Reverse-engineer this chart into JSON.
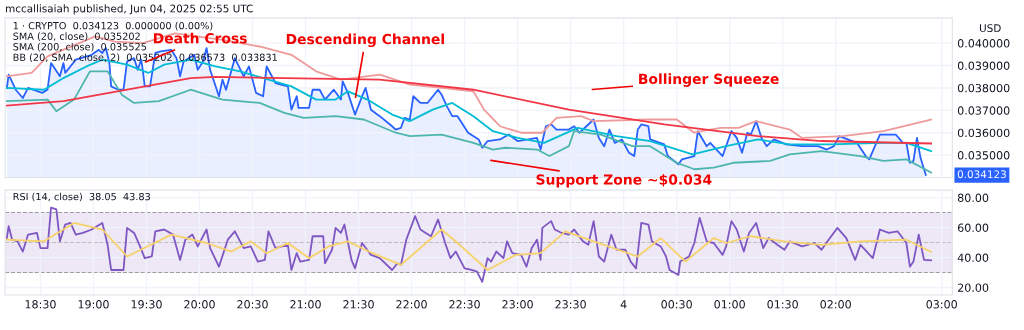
{
  "chart_data": [
    {
      "type": "line",
      "title": "mccallisaiah published, Jun 04, 2025 02:55 UTC",
      "ylabel": "USD",
      "annotations": [
        "1 · CRYPTO  0.034123  0.000000 (0.00%)",
        "SMA (20, close)  0.035202",
        "SMA (200, close)  0.035525",
        "BB (20, SMA, close, 2)  0.035202  0.036573  0.033831",
        "Bollinger Squeeze",
        "Support Zone ~$0.034",
        "0.034123",
        {
          "text": "Death Cross",
          "x": "2025-06-03T19:28",
          "y": 0.03911
        },
        {
          "text": "Descending Channel",
          "x": "2025-06-03T21:28",
          "y": 0.03746
        }
      ],
      "series": [
        {
          "type": "area",
          "color": "#2962ff",
          "x": [
            "2025-06-03T18:11",
            "2025-06-03T18:12",
            "2025-06-03T18:16",
            "2025-06-03T18:20",
            "2025-06-03T18:23",
            "2025-06-03T18:31",
            "2025-06-03T18:34",
            "2025-06-03T18:36",
            "2025-06-03T18:41",
            "2025-06-03T18:43",
            "2025-06-03T18:44",
            "2025-06-03T18:50",
            "2025-06-03T18:59",
            "2025-06-03T19:03",
            "2025-06-03T19:05",
            "2025-06-03T19:07",
            "2025-06-03T19:09",
            "2025-06-03T19:10",
            "2025-06-03T19:14",
            "2025-06-03T19:17",
            "2025-06-03T19:19",
            "2025-06-03T19:23",
            "2025-06-03T19:25",
            "2025-06-03T19:27",
            "2025-06-03T19:28",
            "2025-06-03T19:29",
            "2025-06-03T19:32",
            "2025-06-03T19:35",
            "2025-06-03T19:38",
            "2025-06-03T19:44",
            "2025-06-03T19:47",
            "2025-06-03T19:49",
            "2025-06-03T19:51",
            "2025-06-03T19:57",
            "2025-06-03T19:59",
            "2025-06-03T20:02",
            "2025-06-03T20:04",
            "2025-06-03T20:06",
            "2025-06-03T20:11",
            "2025-06-03T20:13",
            "2025-06-03T20:15",
            "2025-06-03T20:20",
            "2025-06-03T20:25",
            "2025-06-03T20:28",
            "2025-06-03T20:32",
            "2025-06-03T20:36",
            "2025-06-03T20:38",
            "2025-06-03T20:43",
            "2025-06-03T20:50",
            "2025-06-03T20:52",
            "2025-06-03T20:55",
            "2025-06-03T20:56",
            "2025-06-03T21:02",
            "2025-06-03T21:04",
            "2025-06-03T21:08",
            "2025-06-03T21:11",
            "2025-06-03T21:16",
            "2025-06-03T21:20",
            "2025-06-03T21:21",
            "2025-06-03T21:24",
            "2025-06-03T21:28",
            "2025-06-03T21:32",
            "2025-06-03T21:34",
            "2025-06-03T21:37",
            "2025-06-03T21:42",
            "2025-06-03T21:49",
            "2025-06-03T21:51",
            "2025-06-03T21:54",
            "2025-06-03T21:56",
            "2025-06-03T21:59",
            "2025-06-03T22:01",
            "2025-06-03T22:05",
            "2025-06-03T22:09",
            "2025-06-03T22:15",
            "2025-06-03T22:17",
            "2025-06-03T22:20",
            "2025-06-03T22:23",
            "2025-06-03T22:26",
            "2025-06-03T22:32",
            "2025-06-03T22:38",
            "2025-06-03T22:40",
            "2025-06-03T22:43",
            "2025-06-03T22:50",
            "2025-06-03T22:55",
            "2025-06-03T23:00",
            "2025-06-03T23:06",
            "2025-06-03T23:11",
            "2025-06-03T23:13",
            "2025-06-03T23:16",
            "2025-06-03T23:19",
            "2025-06-03T23:22",
            "2025-06-03T23:29",
            "2025-06-03T23:32",
            "2025-06-03T23:35",
            "2025-06-03T23:43",
            "2025-06-03T23:46",
            "2025-06-03T23:49",
            "2025-06-03T23:52",
            "2025-06-03T23:55",
            "2025-06-03T23:59",
            "2025-06-04T00:03",
            "2025-06-04T00:06",
            "2025-06-04T00:08",
            "2025-06-04T00:10",
            "2025-06-04T00:14",
            "2025-06-04T00:15",
            "2025-06-04T00:23",
            "2025-06-04T00:25",
            "2025-06-04T00:31",
            "2025-06-04T00:33",
            "2025-06-04T00:40",
            "2025-06-04T00:42",
            "2025-06-04T00:47",
            "2025-06-04T00:49",
            "2025-06-04T00:56",
            "2025-06-04T01:01",
            "2025-06-04T01:04",
            "2025-06-04T01:07",
            "2025-06-04T01:10",
            "2025-06-04T01:12",
            "2025-06-04T01:15",
            "2025-06-04T01:18",
            "2025-06-04T01:21",
            "2025-06-04T01:25",
            "2025-06-04T01:32",
            "2025-06-04T01:41",
            "2025-06-04T01:50",
            "2025-06-04T01:55",
            "2025-06-04T01:59",
            "2025-06-04T02:02",
            "2025-06-04T02:12",
            "2025-06-04T02:17",
            "2025-06-04T02:19",
            "2025-06-04T02:25",
            "2025-06-04T02:34",
            "2025-06-04T02:38",
            "2025-06-04T02:40",
            "2025-06-04T02:42",
            "2025-06-04T02:44",
            "2025-06-04T02:46",
            "2025-06-04T02:48",
            "2025-06-04T02:51"
          ],
          "values": [
            0.038,
            0.03859,
            0.03792,
            0.03755,
            0.038,
            0.03778,
            0.03792,
            0.03911,
            0.03852,
            0.03911,
            0.03867,
            0.03926,
            0.03948,
            0.0397,
            0.03956,
            0.03978,
            0.03911,
            0.03807,
            0.03792,
            0.03792,
            0.03918,
            0.03933,
            0.03881,
            0.03926,
            0.03874,
            0.03807,
            0.03807,
            0.03956,
            0.03963,
            0.0397,
            0.03933,
            0.03852,
            0.03918,
            0.03948,
            0.03881,
            0.03918,
            0.03978,
            0.03881,
            0.03763,
            0.03837,
            0.03792,
            0.03933,
            0.03852,
            0.03896,
            0.03778,
            0.03763,
            0.03896,
            0.03822,
            0.03807,
            0.03703,
            0.03763,
            0.03711,
            0.03711,
            0.03792,
            0.03792,
            0.03748,
            0.03792,
            0.03748,
            0.03829,
            0.03778,
            0.03681,
            0.03763,
            0.038,
            0.03703,
            0.03674,
            0.03629,
            0.03614,
            0.03622,
            0.03666,
            0.03659,
            0.03763,
            0.03733,
            0.03733,
            0.03792,
            0.0377,
            0.03718,
            0.03674,
            0.03674,
            0.036,
            0.0357,
            0.03533,
            0.03563,
            0.0357,
            0.03592,
            0.03563,
            0.0357,
            0.03577,
            0.03525,
            0.03629,
            0.03637,
            0.03614,
            0.03614,
            0.03629,
            0.036,
            0.03659,
            0.03577,
            0.0354,
            0.03614,
            0.03555,
            0.0357,
            0.03511,
            0.03496,
            0.03614,
            0.03637,
            0.03629,
            0.0357,
            0.03548,
            0.03496,
            0.03459,
            0.03481,
            0.03496,
            0.03607,
            0.0354,
            0.03555,
            0.03496,
            0.03607,
            0.03577,
            0.03511,
            0.036,
            0.03592,
            0.03652,
            0.03577,
            0.0354,
            0.0357,
            0.03548,
            0.0354,
            0.0354,
            0.03525,
            0.0354,
            0.03585,
            0.03555,
            0.03496,
            0.03481,
            0.03592,
            0.03592,
            0.03555,
            0.03555,
            0.03466,
            0.03474,
            0.03577,
            0.03488,
            0.03412
          ]
        },
        {
          "color": "#ef9a9a",
          "x": [
            "2025-06-03T18:11",
            "2025-06-03T18:25",
            "2025-06-03T18:34",
            "2025-06-03T19:01",
            "2025-06-03T19:12",
            "2025-06-03T19:28",
            "2025-06-03T19:46",
            "2025-06-03T20:13",
            "2025-06-03T20:34",
            "2025-06-03T20:52",
            "2025-06-03T21:06",
            "2025-06-03T21:20",
            "2025-06-03T21:42",
            "2025-06-03T21:59",
            "2025-06-03T22:17",
            "2025-06-03T22:35",
            "2025-06-03T22:41",
            "2025-06-03T22:50",
            "2025-06-03T23:02",
            "2025-06-03T23:14",
            "2025-06-03T23:22",
            "2025-06-03T23:36",
            "2025-06-03T23:43",
            "2025-06-04T00:14",
            "2025-06-04T00:30",
            "2025-06-04T00:40",
            "2025-06-04T00:44",
            "2025-06-04T00:55",
            "2025-06-04T01:05",
            "2025-06-04T01:15",
            "2025-06-04T01:34",
            "2025-06-04T01:41",
            "2025-06-04T02:04",
            "2025-06-04T02:27",
            "2025-06-04T02:54"
          ],
          "values": [
            0.03852,
            0.03867,
            0.03941,
            0.0403,
            0.04007,
            0.04,
            0.04044,
            0.04015,
            0.03985,
            0.03948,
            0.03874,
            0.03837,
            0.03859,
            0.03815,
            0.038,
            0.03785,
            0.03703,
            0.03629,
            0.036,
            0.036,
            0.03666,
            0.03674,
            0.03652,
            0.03659,
            0.03659,
            0.036,
            0.03607,
            0.03622,
            0.03622,
            0.03652,
            0.03614,
            0.03577,
            0.03585,
            0.03607,
            0.03659
          ]
        },
        {
          "color": "#4db6ac",
          "x": [
            "2025-06-03T18:11",
            "2025-06-03T18:34",
            "2025-06-03T18:39",
            "2025-06-03T18:49",
            "2025-06-03T18:58",
            "2025-06-03T19:08",
            "2025-06-03T19:16",
            "2025-06-03T19:23",
            "2025-06-03T19:37",
            "2025-06-03T19:55",
            "2025-06-03T20:13",
            "2025-06-03T20:34",
            "2025-06-03T20:48",
            "2025-06-03T20:59",
            "2025-06-03T21:17",
            "2025-06-03T21:33",
            "2025-06-03T21:51",
            "2025-06-03T21:59",
            "2025-06-03T22:17",
            "2025-06-03T22:35",
            "2025-06-03T22:46",
            "2025-06-03T22:53",
            "2025-06-03T23:11",
            "2025-06-03T23:18",
            "2025-06-03T23:29",
            "2025-06-03T23:32",
            "2025-06-03T23:47",
            "2025-06-04T00:05",
            "2025-06-04T00:15",
            "2025-06-04T00:30",
            "2025-06-04T00:40",
            "2025-06-04T00:51",
            "2025-06-04T01:02",
            "2025-06-04T01:23",
            "2025-06-04T01:34",
            "2025-06-04T01:52",
            "2025-06-04T02:14",
            "2025-06-04T02:27",
            "2025-06-04T02:40",
            "2025-06-04T02:54"
          ],
          "values": [
            0.03741,
            0.03748,
            0.03696,
            0.03748,
            0.03874,
            0.03874,
            0.0377,
            0.03733,
            0.03741,
            0.03792,
            0.03748,
            0.03733,
            0.03689,
            0.03666,
            0.03674,
            0.03659,
            0.036,
            0.03585,
            0.03592,
            0.03555,
            0.03525,
            0.03533,
            0.03525,
            0.03496,
            0.0354,
            0.03607,
            0.03592,
            0.0354,
            0.0354,
            0.03466,
            0.03437,
            0.03444,
            0.03466,
            0.03474,
            0.03503,
            0.03518,
            0.03496,
            0.03474,
            0.03481,
            0.03422
          ]
        },
        {
          "color": "#00bcd4",
          "x": [
            "2025-06-03T18:11",
            "2025-06-03T18:32",
            "2025-06-03T18:43",
            "2025-06-03T18:56",
            "2025-06-03T19:05",
            "2025-06-03T19:19",
            "2025-06-03T19:31",
            "2025-06-03T19:40",
            "2025-06-03T19:55",
            "2025-06-03T20:09",
            "2025-06-03T20:23",
            "2025-06-03T20:39",
            "2025-06-03T20:52",
            "2025-06-03T21:06",
            "2025-06-03T21:17",
            "2025-06-03T21:24",
            "2025-06-03T21:35",
            "2025-06-03T21:49",
            "2025-06-03T21:59",
            "2025-06-03T22:12",
            "2025-06-03T22:23",
            "2025-06-03T22:35",
            "2025-06-03T22:46",
            "2025-06-03T23:00",
            "2025-06-03T23:15",
            "2025-06-03T23:34",
            "2025-06-03T23:56",
            "2025-06-04T00:15",
            "2025-06-04T00:39",
            "2025-06-04T00:58",
            "2025-06-04T01:16",
            "2025-06-04T01:34",
            "2025-06-04T01:57",
            "2025-06-04T02:27",
            "2025-06-04T02:40",
            "2025-06-04T02:54"
          ],
          "values": [
            0.038,
            0.03792,
            0.03844,
            0.03896,
            0.03926,
            0.03904,
            0.03867,
            0.03904,
            0.03926,
            0.03896,
            0.03874,
            0.03837,
            0.03807,
            0.03748,
            0.03748,
            0.03785,
            0.03748,
            0.03681,
            0.03652,
            0.03703,
            0.03733,
            0.03674,
            0.03607,
            0.03577,
            0.03555,
            0.03622,
            0.03585,
            0.03563,
            0.03503,
            0.0354,
            0.0357,
            0.03548,
            0.03548,
            0.03555,
            0.03555,
            0.03518
          ]
        },
        {
          "color": "#f23645",
          "x": [
            "2025-06-03T18:11",
            "2025-06-03T18:43",
            "2025-06-03T19:19",
            "2025-06-03T19:55",
            "2025-06-03T20:09",
            "2025-06-03T20:48",
            "2025-06-03T21:42",
            "2025-06-03T22:35",
            "2025-06-03T23:29",
            "2025-06-04T00:23",
            "2025-06-04T01:16",
            "2025-06-04T01:52",
            "2025-06-04T02:54"
          ],
          "values": [
            0.03721,
            0.03741,
            0.03792,
            0.03844,
            0.03849,
            0.03844,
            0.03837,
            0.03792,
            0.03703,
            0.03637,
            0.03585,
            0.03563,
            0.03552
          ]
        }
      ],
      "xlim": [
        "2025-06-03T18:10",
        "2025-06-04T03:06"
      ],
      "ylim": [
        0.034,
        0.04113
      ],
      "yticks": [
        {
          "value": 0.035,
          "label": "0.035000"
        },
        {
          "value": 0.036,
          "label": "0.036000"
        },
        {
          "value": 0.037,
          "label": "0.037000"
        },
        {
          "value": 0.038,
          "label": "0.038000"
        },
        {
          "value": 0.039,
          "label": "0.039000"
        },
        {
          "value": 0.04,
          "label": "0.040000"
        }
      ],
      "xticks": [
        {
          "value": "2025-06-03T18:30",
          "label": null
        },
        {
          "value": "2025-06-03T19:00",
          "label": null
        },
        {
          "value": "2025-06-03T19:30",
          "label": null
        },
        {
          "value": "2025-06-03T20:00",
          "label": null
        },
        {
          "value": "2025-06-03T20:30",
          "label": null
        },
        {
          "value": "2025-06-03T21:00",
          "label": null
        },
        {
          "value": "2025-06-03T21:30",
          "label": null
        },
        {
          "value": "2025-06-03T22:00",
          "label": null
        },
        {
          "value": "2025-06-03T22:30",
          "label": null
        },
        {
          "value": "2025-06-03T23:00",
          "label": null
        },
        {
          "value": "2025-06-03T23:30",
          "label": null
        },
        {
          "value": "2025-06-04T00:00",
          "label": null
        },
        {
          "value": "2025-06-04T00:30",
          "label": null
        },
        {
          "value": "2025-06-04T01:00",
          "label": null
        },
        {
          "value": "2025-06-04T01:30",
          "label": null
        },
        {
          "value": "2025-06-04T02:00",
          "label": null
        },
        {
          "value": "2025-06-04T03:00",
          "label": null
        }
      ],
      "tick_labels": "y",
      "grid": true
    },
    {
      "type": "line",
      "annotations": [
        "RSI (14, close)  38.05  43.83"
      ],
      "series": [
        {
          "color": "#7e57c2",
          "x": [
            "2025-06-03T18:11",
            "2025-06-03T18:12",
            "2025-06-03T18:14",
            "2025-06-03T18:17",
            "2025-06-03T18:20",
            "2025-06-03T18:23",
            "2025-06-03T18:28",
            "2025-06-03T18:30",
            "2025-06-03T18:34",
            "2025-06-03T18:36",
            "2025-06-03T18:39",
            "2025-06-03T18:41",
            "2025-06-03T18:44",
            "2025-06-03T18:47",
            "2025-06-03T18:50",
            "2025-06-03T18:54",
            "2025-06-03T18:59",
            "2025-06-03T19:05",
            "2025-06-03T19:08",
            "2025-06-03T19:10",
            "2025-06-03T19:14",
            "2025-06-03T19:17",
            "2025-06-03T19:19",
            "2025-06-03T19:23",
            "2025-06-03T19:26",
            "2025-06-03T19:29",
            "2025-06-03T19:33",
            "2025-06-03T19:35",
            "2025-06-03T19:40",
            "2025-06-03T19:45",
            "2025-06-03T19:49",
            "2025-06-03T19:52",
            "2025-06-03T19:56",
            "2025-06-03T19:59",
            "2025-06-03T20:04",
            "2025-06-03T20:06",
            "2025-06-03T20:11",
            "2025-06-03T20:16",
            "2025-06-03T20:20",
            "2025-06-03T20:25",
            "2025-06-03T20:29",
            "2025-06-03T20:33",
            "2025-06-03T20:37",
            "2025-06-03T20:39",
            "2025-06-03T20:43",
            "2025-06-03T20:50",
            "2025-06-03T20:52",
            "2025-06-03T20:55",
            "2025-06-03T20:57",
            "2025-06-03T21:02",
            "2025-06-03T21:04",
            "2025-06-03T21:10",
            "2025-06-03T21:11",
            "2025-06-03T21:15",
            "2025-06-03T21:17",
            "2025-06-03T21:20",
            "2025-06-03T21:22",
            "2025-06-03T21:26",
            "2025-06-03T21:28",
            "2025-06-03T21:32",
            "2025-06-03T21:37",
            "2025-06-03T21:42",
            "2025-06-03T21:49",
            "2025-06-03T21:52",
            "2025-06-03T21:54",
            "2025-06-03T21:57",
            "2025-06-03T22:02",
            "2025-06-03T22:05",
            "2025-06-03T22:08",
            "2025-06-03T22:11",
            "2025-06-03T22:15",
            "2025-06-03T22:19",
            "2025-06-03T22:22",
            "2025-06-03T22:25",
            "2025-06-03T22:30",
            "2025-06-03T22:34",
            "2025-06-03T22:37",
            "2025-06-03T22:40",
            "2025-06-03T22:43",
            "2025-06-03T22:45",
            "2025-06-03T22:48",
            "2025-06-03T22:52",
            "2025-06-03T22:54",
            "2025-06-03T22:57",
            "2025-06-03T23:02",
            "2025-06-03T23:05",
            "2025-06-03T23:08",
            "2025-06-03T23:11",
            "2025-06-03T23:13",
            "2025-06-03T23:14",
            "2025-06-03T23:19",
            "2025-06-03T23:21",
            "2025-06-03T23:25",
            "2025-06-03T23:29",
            "2025-06-03T23:32",
            "2025-06-03T23:37",
            "2025-06-03T23:40",
            "2025-06-03T23:43",
            "2025-06-03T23:46",
            "2025-06-03T23:49",
            "2025-06-03T23:53",
            "2025-06-03T23:56",
            "2025-06-04T00:01",
            "2025-06-04T00:04",
            "2025-06-04T00:07",
            "2025-06-04T00:10",
            "2025-06-04T00:14",
            "2025-06-04T00:16",
            "2025-06-04T00:21",
            "2025-06-04T00:24",
            "2025-06-04T00:26",
            "2025-06-04T00:31",
            "2025-06-04T00:32",
            "2025-06-04T00:37",
            "2025-06-04T00:40",
            "2025-06-04T00:43",
            "2025-06-04T00:47",
            "2025-06-04T00:51",
            "2025-06-04T00:56",
            "2025-06-04T00:58",
            "2025-06-04T01:01",
            "2025-06-04T01:04",
            "2025-06-04T01:08",
            "2025-06-04T01:11",
            "2025-06-04T01:15",
            "2025-06-04T01:19",
            "2025-06-04T01:22",
            "2025-06-04T01:27",
            "2025-06-04T01:31",
            "2025-06-04T01:34",
            "2025-06-04T01:41",
            "2025-06-04T01:48",
            "2025-06-04T01:52",
            "2025-06-04T01:56",
            "2025-06-04T02:01",
            "2025-06-04T02:06",
            "2025-06-04T02:11",
            "2025-06-04T02:14",
            "2025-06-04T02:21",
            "2025-06-04T02:25",
            "2025-06-04T02:30",
            "2025-06-04T02:35",
            "2025-06-04T02:40",
            "2025-06-04T02:42",
            "2025-06-04T02:44",
            "2025-06-04T02:47",
            "2025-06-04T02:50",
            "2025-06-04T02:54"
          ],
          "values": [
            53.0,
            60.9,
            51.9,
            50.8,
            44.0,
            55.3,
            56.4,
            46.3,
            46.3,
            73.3,
            72.1,
            50.8,
            62.0,
            63.1,
            55.3,
            56.4,
            58.7,
            63.1,
            48.5,
            31.7,
            31.7,
            31.7,
            59.8,
            56.4,
            48.5,
            39.6,
            40.7,
            57.5,
            58.7,
            55.3,
            38.4,
            51.9,
            55.3,
            47.4,
            58.7,
            46.3,
            33.9,
            51.9,
            57.5,
            46.3,
            47.4,
            37.3,
            38.4,
            57.5,
            46.3,
            48.5,
            31.7,
            42.9,
            37.3,
            38.4,
            54.2,
            54.2,
            36.2,
            45.2,
            59.8,
            56.4,
            62.0,
            38.4,
            32.8,
            49.7,
            41.8,
            39.6,
            31.7,
            36.2,
            35.1,
            51.9,
            67.6,
            58.7,
            56.4,
            54.2,
            65.4,
            49.7,
            39.6,
            44.0,
            32.8,
            31.7,
            30.6,
            23.8,
            39.6,
            37.3,
            44.0,
            39.6,
            50.8,
            42.9,
            41.8,
            33.9,
            46.3,
            51.9,
            38.4,
            59.8,
            64.3,
            58.7,
            56.4,
            55.3,
            58.7,
            50.8,
            48.5,
            64.3,
            40.7,
            37.3,
            55.3,
            45.2,
            45.2,
            37.3,
            32.8,
            63.1,
            62.0,
            50.8,
            47.4,
            40.7,
            31.7,
            28.3,
            37.3,
            40.7,
            49.7,
            66.5,
            50.8,
            49.7,
            41.8,
            47.4,
            64.3,
            58.7,
            44.0,
            56.4,
            63.1,
            46.3,
            53.0,
            48.5,
            45.2,
            50.8,
            47.4,
            49.7,
            45.2,
            51.9,
            59.8,
            53.0,
            38.4,
            48.5,
            39.6,
            58.7,
            56.4,
            57.5,
            49.7,
            33.9,
            37.3,
            55.3,
            38.4,
            38.1
          ]
        },
        {
          "color": "#f7d26a",
          "x": [
            "2025-06-03T18:11",
            "2025-06-03T18:32",
            "2025-06-03T18:49",
            "2025-06-03T19:05",
            "2025-06-03T19:19",
            "2025-06-03T19:44",
            "2025-06-03T20:04",
            "2025-06-03T20:18",
            "2025-06-03T20:29",
            "2025-06-03T20:38",
            "2025-06-03T20:50",
            "2025-06-03T21:02",
            "2025-06-03T21:13",
            "2025-06-03T21:24",
            "2025-06-03T21:38",
            "2025-06-03T21:54",
            "2025-06-03T22:17",
            "2025-06-03T22:26",
            "2025-06-03T22:43",
            "2025-06-03T22:59",
            "2025-06-03T23:13",
            "2025-06-03T23:27",
            "2025-06-03T23:43",
            "2025-06-04T00:08",
            "2025-06-04T00:21",
            "2025-06-04T00:35",
            "2025-06-04T00:51",
            "2025-06-04T00:58",
            "2025-06-04T01:12",
            "2025-06-04T01:31",
            "2025-06-04T01:52",
            "2025-06-04T02:14",
            "2025-06-04T02:40",
            "2025-06-04T02:54"
          ],
          "values": [
            51.9,
            50.8,
            63.1,
            58.7,
            40.7,
            55.3,
            49.7,
            44.0,
            50.8,
            42.9,
            49.7,
            39.6,
            47.4,
            50.8,
            42.9,
            35.1,
            58.7,
            49.7,
            31.7,
            41.8,
            42.9,
            57.5,
            50.8,
            40.7,
            53.0,
            37.3,
            53.0,
            49.7,
            54.2,
            50.8,
            48.5,
            50.8,
            51.9,
            43.8
          ]
        }
      ],
      "bands": [
        {
          "axis": "y",
          "from": 30,
          "to": 70,
          "color": "#ede7f6"
        }
      ],
      "ref_lines": [
        {
          "axis": "y",
          "value": 70,
          "line_style": "dashed",
          "color": "#9e9e9e"
        },
        {
          "axis": "y",
          "value": 50,
          "line_style": "dashed",
          "color": "#bdbdbd"
        },
        {
          "axis": "y",
          "value": 30,
          "line_style": "dashed",
          "color": "#9e9e9e"
        }
      ],
      "xlim": [
        "2025-06-03T18:10",
        "2025-06-04T03:06"
      ],
      "ylim": [
        15,
        85
      ],
      "yticks": [
        {
          "value": 20,
          "label": "20.00"
        },
        {
          "value": 40,
          "label": "40.00"
        },
        {
          "value": 60,
          "label": "60.00"
        },
        {
          "value": 80,
          "label": "80.00"
        }
      ],
      "xticks": [
        {
          "value": "2025-06-03T18:30",
          "label": "18:30"
        },
        {
          "value": "2025-06-03T19:00",
          "label": "19:00"
        },
        {
          "value": "2025-06-03T19:30",
          "label": "19:30"
        },
        {
          "value": "2025-06-03T20:00",
          "label": "20:00"
        },
        {
          "value": "2025-06-03T20:30",
          "label": "20:30"
        },
        {
          "value": "2025-06-03T21:00",
          "label": "21:00"
        },
        {
          "value": "2025-06-03T21:30",
          "label": "21:30"
        },
        {
          "value": "2025-06-03T22:00",
          "label": "22:00"
        },
        {
          "value": "2025-06-03T22:30",
          "label": "22:30"
        },
        {
          "value": "2025-06-03T23:00",
          "label": "23:00"
        },
        {
          "value": "2025-06-03T23:30",
          "label": "23:30"
        },
        {
          "value": "2025-06-04T00:00",
          "label": "4"
        },
        {
          "value": "2025-06-04T00:30",
          "label": "00:30"
        },
        {
          "value": "2025-06-04T01:00",
          "label": "01:00"
        },
        {
          "value": "2025-06-04T01:30",
          "label": "01:30"
        },
        {
          "value": "2025-06-04T02:00",
          "label": "02:00"
        },
        {
          "value": "2025-06-04T03:00",
          "label": "03:00"
        }
      ],
      "grid": true
    }
  ]
}
